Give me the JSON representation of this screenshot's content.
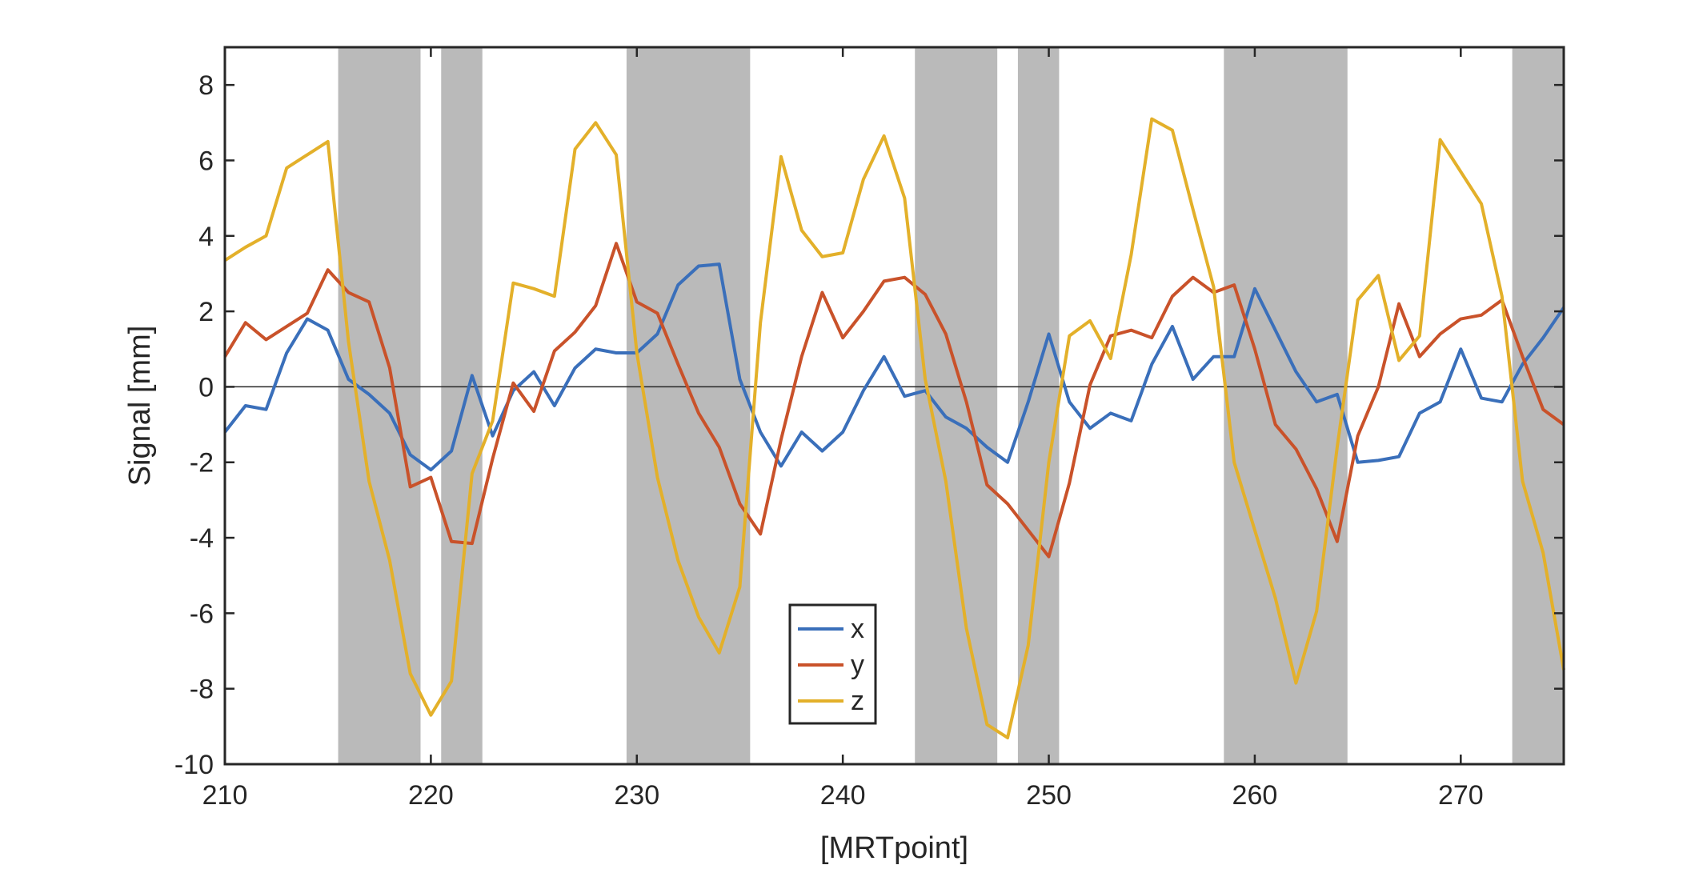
{
  "chart_data": {
    "type": "line",
    "title": "",
    "xlabel": "[MRTpoint]",
    "ylabel": "Signal [mm]",
    "xlim": [
      210,
      275
    ],
    "ylim": [
      -10,
      9
    ],
    "xticks": [
      210,
      220,
      230,
      240,
      250,
      260,
      270
    ],
    "yticks": [
      -10,
      -8,
      -6,
      -4,
      -2,
      0,
      2,
      4,
      6,
      8
    ],
    "xtick_labels": [
      "210",
      "220",
      "230",
      "240",
      "250",
      "260",
      "270"
    ],
    "ytick_labels": [
      "-10",
      "-8",
      "-6",
      "-4",
      "-2",
      "0",
      "2",
      "4",
      "6",
      "8"
    ],
    "zero_line": true,
    "legend_position": "bottom-center",
    "shaded_regions": [
      [
        215.5,
        219.5
      ],
      [
        220.5,
        222.5
      ],
      [
        229.5,
        235.5
      ],
      [
        243.5,
        247.5
      ],
      [
        248.5,
        250.5
      ],
      [
        258.5,
        264.5
      ],
      [
        272.5,
        275
      ]
    ],
    "shade_color": "#bababa",
    "x": [
      210,
      211,
      212,
      213,
      214,
      215,
      216,
      217,
      218,
      219,
      220,
      221,
      222,
      223,
      224,
      225,
      226,
      227,
      228,
      229,
      230,
      231,
      232,
      233,
      234,
      235,
      236,
      237,
      238,
      239,
      240,
      241,
      242,
      243,
      244,
      245,
      246,
      247,
      248,
      249,
      250,
      251,
      252,
      253,
      254,
      255,
      256,
      257,
      258,
      259,
      260,
      261,
      262,
      263,
      264,
      265,
      266,
      267,
      268,
      269,
      270,
      271,
      272,
      273,
      274,
      275
    ],
    "series": [
      {
        "name": "x",
        "color": "#3a6fba",
        "values": [
          -1.2,
          -0.5,
          -0.6,
          0.9,
          1.8,
          1.5,
          0.2,
          -0.2,
          -0.7,
          -1.8,
          -2.2,
          -1.7,
          0.3,
          -1.3,
          -0.1,
          0.4,
          -0.5,
          0.5,
          1.0,
          0.9,
          0.9,
          1.4,
          2.7,
          3.2,
          3.25,
          0.2,
          -1.2,
          -2.1,
          -1.2,
          -1.7,
          -1.2,
          -0.1,
          0.8,
          -0.25,
          -0.1,
          -0.8,
          -1.1,
          -1.6,
          -2.0,
          -0.4,
          1.4,
          -0.4,
          -1.1,
          -0.7,
          -0.9,
          0.6,
          1.6,
          0.2,
          0.8,
          0.8,
          2.6,
          1.5,
          0.4,
          -0.4,
          -0.2,
          -2.0,
          -1.95,
          -1.85,
          -0.7,
          -0.4,
          1.0,
          -0.3,
          -0.4,
          0.6,
          1.3,
          2.1
        ]
      },
      {
        "name": "y",
        "color": "#c9522a",
        "values": [
          0.8,
          1.7,
          1.25,
          1.6,
          1.95,
          3.1,
          2.5,
          2.25,
          0.5,
          -2.65,
          -2.4,
          -4.1,
          -4.15,
          -1.9,
          0.1,
          -0.65,
          0.95,
          1.45,
          2.15,
          3.8,
          2.25,
          1.95,
          0.6,
          -0.7,
          -1.6,
          -3.1,
          -3.9,
          -1.4,
          0.8,
          2.5,
          1.3,
          2.0,
          2.8,
          2.9,
          2.45,
          1.4,
          -0.4,
          -2.6,
          -3.1,
          -3.8,
          -4.5,
          -2.55,
          0.05,
          1.35,
          1.5,
          1.3,
          2.4,
          2.9,
          2.5,
          2.7,
          1.0,
          -1.0,
          -1.65,
          -2.7,
          -4.1,
          -1.3,
          0.0,
          2.2,
          0.8,
          1.4,
          1.8,
          1.9,
          2.3,
          0.8,
          -0.6,
          -1.0
        ]
      },
      {
        "name": "z",
        "color": "#e3b02a",
        "values": [
          3.35,
          3.7,
          4.0,
          5.8,
          6.15,
          6.5,
          1.2,
          -2.5,
          -4.6,
          -7.6,
          -8.7,
          -7.8,
          -2.3,
          -0.9,
          2.75,
          2.6,
          2.4,
          6.3,
          7.0,
          6.15,
          0.9,
          -2.4,
          -4.6,
          -6.1,
          -7.05,
          -5.3,
          1.7,
          6.1,
          4.15,
          3.45,
          3.55,
          5.5,
          6.65,
          5.0,
          0.2,
          -2.5,
          -6.4,
          -8.95,
          -9.3,
          -6.85,
          -2.0,
          1.35,
          1.75,
          0.75,
          3.5,
          7.1,
          6.8,
          4.7,
          2.65,
          -2.0,
          -3.8,
          -5.6,
          -7.85,
          -5.95,
          -1.6,
          2.3,
          2.95,
          0.7,
          1.35,
          6.55,
          5.7,
          4.85,
          2.4,
          -2.5,
          -4.4,
          -7.5
        ]
      }
    ]
  }
}
